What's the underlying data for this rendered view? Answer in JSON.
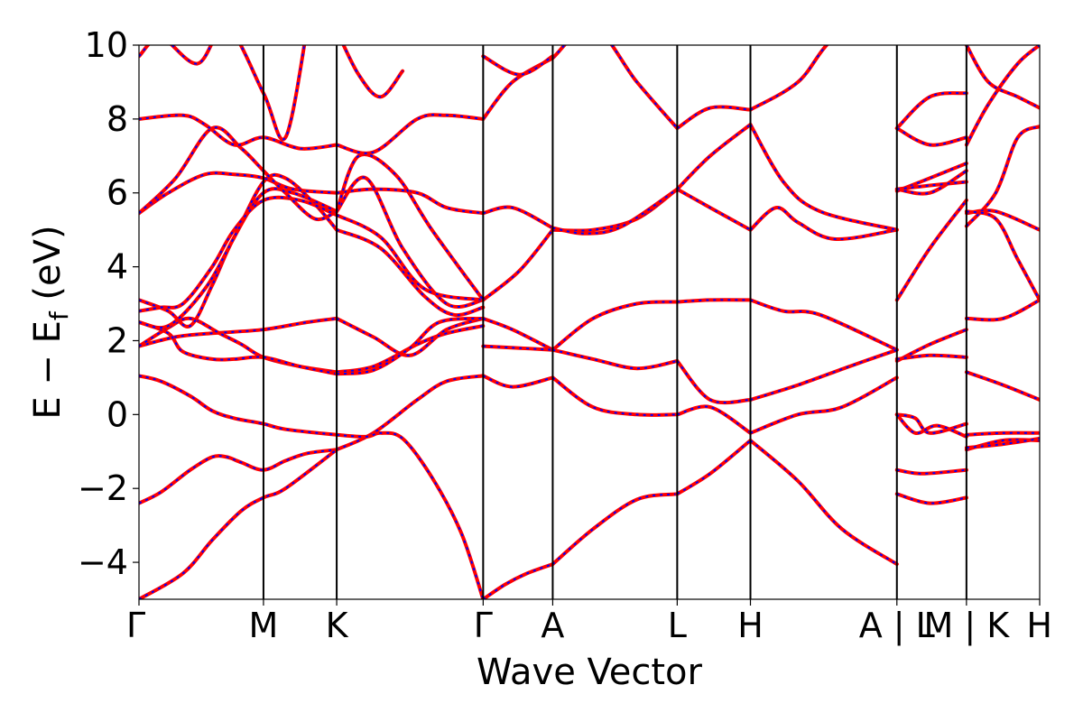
{
  "chart_data": {
    "type": "line",
    "xlabel": "Wave Vector",
    "ylabel": "E − E",
    "ylabel_sub": "f",
    "ylabel_unit": " (eV)",
    "xlim": [
      0,
      12.3
    ],
    "ylim": [
      -5,
      10
    ],
    "yticks": [
      -4,
      -2,
      0,
      2,
      4,
      6,
      8,
      10
    ],
    "yticklabels": [
      "−4",
      "−2",
      "0",
      "2",
      "4",
      "6",
      "8",
      "10"
    ],
    "kpoints": [
      {
        "x": 0.0,
        "label": "Γ"
      },
      {
        "x": 1.7,
        "label": "M"
      },
      {
        "x": 2.7,
        "label": "K"
      },
      {
        "x": 4.7,
        "label": "Γ"
      },
      {
        "x": 5.65,
        "label": "A"
      },
      {
        "x": 7.35,
        "label": "L"
      },
      {
        "x": 8.35,
        "label": "H"
      },
      {
        "x": 10.35,
        "label": "A | L"
      },
      {
        "x": 11.3,
        "label": "M | K"
      },
      {
        "x": 12.3,
        "label": "H"
      }
    ],
    "grid": false,
    "style": {
      "solid_color": "#ff0000",
      "dashed_color": "#0000ff",
      "tick_color": "#000000"
    },
    "series": [
      {
        "x": [
          0,
          0.3,
          0.7,
          1.0,
          1.2,
          1.4,
          1.7,
          2.0,
          2.3,
          2.7
        ],
        "y": [
          -2.4,
          -2.1,
          -1.5,
          -1.15,
          -1.15,
          -1.3,
          -1.5,
          -1.25,
          -1.05,
          -0.95
        ]
      },
      {
        "x": [
          2.7,
          3.2,
          3.8,
          4.2,
          4.7
        ],
        "y": [
          -0.95,
          -0.5,
          0.4,
          0.9,
          1.05
        ]
      },
      {
        "x": [
          4.7,
          5.1,
          5.65
        ],
        "y": [
          1.05,
          0.75,
          1.0
        ]
      },
      {
        "x": [
          5.65,
          6.2,
          6.8,
          7.35
        ],
        "y": [
          1.0,
          0.2,
          0.0,
          0.0
        ]
      },
      {
        "x": [
          7.35,
          7.8,
          8.35
        ],
        "y": [
          0.0,
          0.2,
          -0.5
        ]
      },
      {
        "x": [
          8.35,
          9.0,
          9.6,
          10.35
        ],
        "y": [
          -0.5,
          0.0,
          0.2,
          1.0
        ]
      },
      {
        "x": [
          0,
          0.3,
          0.7,
          1.0,
          1.3,
          1.7,
          2.0,
          2.7
        ],
        "y": [
          1.05,
          0.9,
          0.5,
          0.1,
          -0.1,
          -0.25,
          -0.4,
          -0.55
        ]
      },
      {
        "x": [
          2.7,
          3.1,
          3.3,
          3.6,
          4.0,
          4.4,
          4.7
        ],
        "y": [
          -0.55,
          -0.6,
          -0.5,
          -0.65,
          -1.7,
          -3.2,
          -5.0
        ]
      },
      {
        "x": [
          0,
          0.5,
          1.0,
          1.7,
          2.3,
          2.7
        ],
        "y": [
          1.85,
          2.1,
          2.2,
          2.3,
          2.5,
          2.6
        ]
      },
      {
        "x": [
          2.7,
          3.2,
          3.7,
          4.2,
          4.7
        ],
        "y": [
          2.6,
          2.1,
          1.6,
          2.3,
          2.6
        ]
      },
      {
        "x": [
          0,
          0.4,
          0.7,
          1.1,
          1.4,
          1.7,
          2.2,
          2.7
        ],
        "y": [
          1.85,
          2.35,
          2.6,
          2.2,
          1.9,
          1.55,
          1.3,
          1.15
        ]
      },
      {
        "x": [
          2.7,
          3.2,
          3.8,
          4.2,
          4.7
        ],
        "y": [
          1.15,
          1.3,
          1.9,
          2.2,
          2.4
        ]
      },
      {
        "x": [
          0,
          0.4,
          0.6,
          1.0,
          1.3,
          1.7,
          2.2,
          2.7
        ],
        "y": [
          2.5,
          2.2,
          1.7,
          1.5,
          1.5,
          1.55,
          1.3,
          1.1
        ]
      },
      {
        "x": [
          2.7,
          3.2,
          3.7,
          4.1,
          4.7
        ],
        "y": [
          1.1,
          1.2,
          1.8,
          2.5,
          2.6
        ]
      },
      {
        "x": [
          4.7,
          5.1,
          5.65
        ],
        "y": [
          2.6,
          2.3,
          1.75
        ]
      },
      {
        "x": [
          4.7,
          5.2,
          5.65
        ],
        "y": [
          1.85,
          1.8,
          1.75
        ]
      },
      {
        "x": [
          5.65,
          6.2,
          6.8,
          7.35
        ],
        "y": [
          1.75,
          2.6,
          3.0,
          3.05
        ]
      },
      {
        "x": [
          7.35,
          7.8,
          8.35
        ],
        "y": [
          3.05,
          3.1,
          3.1
        ]
      },
      {
        "x": [
          8.35,
          8.8,
          9.3,
          10.35
        ],
        "y": [
          3.1,
          2.8,
          2.7,
          1.75
        ]
      },
      {
        "x": [
          5.65,
          6.2,
          6.8,
          7.35
        ],
        "y": [
          1.75,
          1.5,
          1.25,
          1.45
        ]
      },
      {
        "x": [
          7.35,
          7.8,
          8.35
        ],
        "y": [
          1.45,
          0.4,
          0.4
        ]
      },
      {
        "x": [
          8.35,
          9.0,
          9.7,
          10.35
        ],
        "y": [
          0.4,
          0.8,
          1.3,
          1.75
        ]
      },
      {
        "x": [
          0,
          0.4,
          0.7,
          1.0,
          1.3,
          1.7,
          2.1,
          2.7
        ],
        "y": [
          3.1,
          2.8,
          2.4,
          3.5,
          4.8,
          6.0,
          6.0,
          5.5
        ]
      },
      {
        "x": [
          2.7,
          3.1,
          3.6,
          4.2,
          4.7
        ],
        "y": [
          5.5,
          6.4,
          4.5,
          3.0,
          3.1
        ]
      },
      {
        "x": [
          0,
          0.4,
          0.9,
          1.3,
          1.7,
          2.0,
          2.4,
          2.7
        ],
        "y": [
          2.5,
          2.4,
          3.4,
          4.8,
          6.3,
          6.4,
          5.7,
          5.0
        ]
      },
      {
        "x": [
          2.7,
          3.3,
          3.9,
          4.3,
          4.7
        ],
        "y": [
          5.0,
          4.5,
          3.2,
          2.7,
          2.9
        ]
      },
      {
        "x": [
          0,
          0.3,
          0.6,
          1.0,
          1.3,
          1.7,
          2.2,
          2.7
        ],
        "y": [
          2.8,
          2.9,
          3.0,
          4.0,
          5.0,
          5.8,
          5.8,
          5.4
        ]
      },
      {
        "x": [
          2.7,
          3.3,
          3.9,
          4.7
        ],
        "y": [
          5.4,
          4.8,
          3.4,
          3.1
        ]
      },
      {
        "x": [
          4.7,
          5.2,
          5.65
        ],
        "y": [
          3.1,
          3.9,
          5.0
        ]
      },
      {
        "x": [
          5.65,
          6.2,
          6.8,
          7.35
        ],
        "y": [
          5.0,
          5.0,
          5.3,
          6.1
        ]
      },
      {
        "x": [
          7.35,
          7.8,
          8.35
        ],
        "y": [
          6.1,
          5.6,
          5.0
        ]
      },
      {
        "x": [
          8.35,
          8.7,
          9.0,
          9.5,
          10.35
        ],
        "y": [
          5.0,
          5.6,
          5.2,
          4.75,
          5.0
        ]
      },
      {
        "x": [
          0,
          0.4,
          0.9,
          1.3,
          1.7,
          2.1,
          2.7
        ],
        "y": [
          5.45,
          6.0,
          6.5,
          6.5,
          6.4,
          6.1,
          6.0
        ]
      },
      {
        "x": [
          2.7,
          3.2,
          3.8,
          4.2,
          4.7
        ],
        "y": [
          6.0,
          6.1,
          6.0,
          5.6,
          5.45
        ]
      },
      {
        "x": [
          4.7,
          5.1,
          5.65
        ],
        "y": [
          5.45,
          5.6,
          5.05
        ]
      },
      {
        "x": [
          5.65,
          6.1,
          6.6,
          7.35
        ],
        "y": [
          5.05,
          4.9,
          5.1,
          6.1
        ]
      },
      {
        "x": [
          7.35,
          7.8,
          8.35
        ],
        "y": [
          6.1,
          7.0,
          7.85
        ]
      },
      {
        "x": [
          8.35,
          8.8,
          9.3,
          10.35
        ],
        "y": [
          7.85,
          6.3,
          5.5,
          5.0
        ]
      },
      {
        "x": [
          0,
          0.5,
          1.0,
          1.4,
          1.7,
          2.0,
          2.4,
          2.7
        ],
        "y": [
          5.45,
          6.4,
          7.75,
          7.2,
          6.6,
          6.0,
          5.3,
          5.5
        ]
      },
      {
        "x": [
          2.7,
          3.0,
          3.5,
          4.0,
          4.7
        ],
        "y": [
          5.5,
          7.0,
          6.5,
          5.0,
          3.1
        ]
      },
      {
        "x": [
          0,
          0.6,
          0.9,
          1.3,
          1.7,
          2.2,
          2.7
        ],
        "y": [
          8.0,
          8.1,
          7.85,
          7.3,
          7.5,
          7.2,
          7.3
        ]
      },
      {
        "x": [
          2.7,
          3.2,
          3.8,
          4.2,
          4.7
        ],
        "y": [
          7.3,
          7.1,
          8.0,
          8.1,
          8.0
        ]
      },
      {
        "x": [
          4.7,
          5.1,
          5.65
        ],
        "y": [
          8.0,
          9.0,
          9.65
        ]
      },
      {
        "x": [
          5.65,
          6.2,
          6.8,
          7.35
        ],
        "y": [
          9.65,
          10.5,
          9.0,
          7.75
        ]
      },
      {
        "x": [
          7.35,
          7.8,
          8.35
        ],
        "y": [
          7.75,
          8.3,
          8.25
        ]
      },
      {
        "x": [
          8.35,
          9.0,
          9.5,
          10.35
        ],
        "y": [
          8.25,
          9.0,
          10.2,
          11.0
        ]
      },
      {
        "x": [
          0,
          0.3,
          0.8,
          1.2,
          1.7,
          2.0,
          2.3
        ],
        "y": [
          9.7,
          10.2,
          9.5,
          10.5,
          8.7,
          7.5,
          10.5
        ]
      },
      {
        "x": [
          2.7,
          3.0,
          3.3,
          3.6
        ],
        "y": [
          10.4,
          9.2,
          8.6,
          9.3
        ]
      },
      {
        "x": [
          4.7,
          5.2,
          5.65
        ],
        "y": [
          9.7,
          9.2,
          9.7
        ]
      },
      {
        "x": [
          0,
          0.6,
          1.0,
          1.4,
          1.7,
          2.0,
          2.7
        ],
        "y": [
          -5.0,
          -4.3,
          -3.4,
          -2.6,
          -2.25,
          -2.0,
          -0.95
        ]
      },
      {
        "x": [
          4.7,
          5.0,
          5.3,
          5.65
        ],
        "y": [
          -5.0,
          -4.6,
          -4.3,
          -4.05
        ]
      },
      {
        "x": [
          5.65,
          6.2,
          6.8,
          7.35
        ],
        "y": [
          -4.05,
          -3.1,
          -2.3,
          -2.15
        ]
      },
      {
        "x": [
          7.35,
          7.8,
          8.35
        ],
        "y": [
          -2.15,
          -1.6,
          -0.7
        ]
      },
      {
        "x": [
          8.35,
          9.0,
          9.6,
          10.35
        ],
        "y": [
          -0.7,
          -1.8,
          -3.1,
          -4.05
        ]
      },
      {
        "x": [
          10.35,
          10.8,
          11.3
        ],
        "y": [
          3.1,
          4.5,
          5.8
        ]
      },
      {
        "x": [
          10.35,
          10.8,
          11.3
        ],
        "y": [
          7.75,
          8.6,
          8.7
        ]
      },
      {
        "x": [
          10.35,
          10.8,
          11.3
        ],
        "y": [
          7.75,
          7.3,
          7.5
        ]
      },
      {
        "x": [
          10.35,
          10.8,
          11.3
        ],
        "y": [
          6.1,
          6.0,
          6.6
        ]
      },
      {
        "x": [
          10.35,
          10.8,
          11.3
        ],
        "y": [
          6.05,
          6.4,
          6.8
        ]
      },
      {
        "x": [
          10.35,
          10.8,
          11.3
        ],
        "y": [
          6.1,
          6.2,
          6.3
        ]
      },
      {
        "x": [
          10.35,
          10.8,
          11.3
        ],
        "y": [
          1.45,
          1.9,
          2.3
        ]
      },
      {
        "x": [
          10.35,
          10.8,
          11.3
        ],
        "y": [
          1.5,
          1.6,
          1.55
        ]
      },
      {
        "x": [
          10.35,
          10.6,
          10.8,
          11.3
        ],
        "y": [
          0.0,
          -0.1,
          -0.5,
          -0.25
        ]
      },
      {
        "x": [
          10.35,
          10.6,
          10.9,
          11.3
        ],
        "y": [
          0.0,
          -0.5,
          -0.3,
          -0.6
        ]
      },
      {
        "x": [
          10.35,
          10.7,
          11.3
        ],
        "y": [
          -1.5,
          -1.6,
          -1.5
        ]
      },
      {
        "x": [
          10.35,
          10.8,
          11.3
        ],
        "y": [
          -2.15,
          -2.4,
          -2.25
        ]
      },
      {
        "x": [
          11.3,
          11.7,
          12.0,
          12.3
        ],
        "y": [
          5.1,
          6.0,
          7.5,
          7.8
        ]
      },
      {
        "x": [
          11.3,
          11.7,
          12.3
        ],
        "y": [
          5.45,
          5.5,
          5.0
        ]
      },
      {
        "x": [
          11.3,
          11.7,
          12.0,
          12.3
        ],
        "y": [
          5.5,
          5.3,
          4.2,
          3.1
        ]
      },
      {
        "x": [
          11.3,
          11.8,
          12.3
        ],
        "y": [
          2.6,
          2.6,
          3.1
        ]
      },
      {
        "x": [
          11.3,
          11.8,
          12.3
        ],
        "y": [
          1.15,
          0.8,
          0.4
        ]
      },
      {
        "x": [
          11.3,
          11.8,
          12.3
        ],
        "y": [
          -0.55,
          -0.5,
          -0.5
        ]
      },
      {
        "x": [
          11.3,
          11.8,
          12.3
        ],
        "y": [
          -0.95,
          -0.7,
          -0.7
        ]
      },
      {
        "x": [
          11.3,
          11.8,
          12.3
        ],
        "y": [
          -0.9,
          -0.8,
          -0.65
        ]
      },
      {
        "x": [
          11.3,
          11.6,
          12.0,
          12.3
        ],
        "y": [
          7.3,
          8.4,
          9.5,
          10.0
        ]
      },
      {
        "x": [
          11.3,
          11.6,
          12.0,
          12.3
        ],
        "y": [
          10.0,
          9.0,
          8.6,
          8.3
        ]
      }
    ]
  }
}
